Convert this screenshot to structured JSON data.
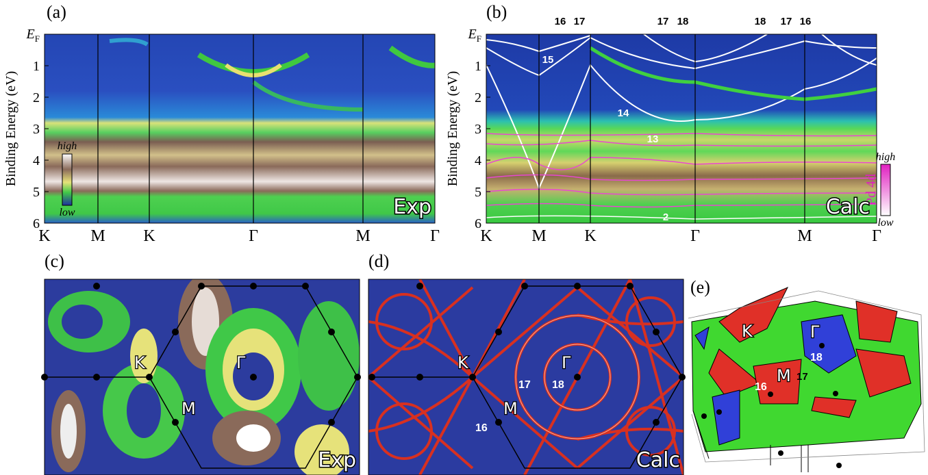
{
  "panel_a": {
    "label": "(a)",
    "fermi": {
      "main": "E",
      "sub": "F"
    },
    "yticks": [
      1,
      2,
      3,
      4,
      5,
      6
    ],
    "y_label": "Binding Energy (eV)",
    "k_labels": [
      "K",
      "M",
      "K",
      "Γ",
      "M",
      "Γ"
    ],
    "legend": {
      "high": "high",
      "low": "low"
    },
    "tag": "Exp"
  },
  "panel_b": {
    "label": "(b)",
    "fermi": {
      "main": "E",
      "sub": "F"
    },
    "yticks": [
      1,
      2,
      3,
      4,
      5,
      6
    ],
    "y_label": "Binding Energy (eV)",
    "k_labels": [
      "K",
      "M",
      "K",
      "Γ",
      "M",
      "Γ"
    ],
    "top_bands": [
      "16",
      "17",
      "17",
      "18",
      "18",
      "17",
      "16"
    ],
    "bands": [
      "15",
      "14",
      "13",
      "2"
    ],
    "legend": {
      "high": "high",
      "low": "low",
      "name": "Pd 4d"
    },
    "tag": "Calc"
  },
  "panel_c": {
    "label": "(c)",
    "points": [
      "K",
      "Γ",
      "M"
    ],
    "tag": "Exp"
  },
  "panel_d": {
    "label": "(d)",
    "points": [
      "K",
      "Γ",
      "M"
    ],
    "sheets": [
      "17",
      "18",
      "16"
    ],
    "tag": "Calc"
  },
  "panel_e": {
    "label": "(e)",
    "points": [
      "K",
      "Γ",
      "M"
    ],
    "sheets": [
      "18",
      "17",
      "16"
    ]
  }
}
